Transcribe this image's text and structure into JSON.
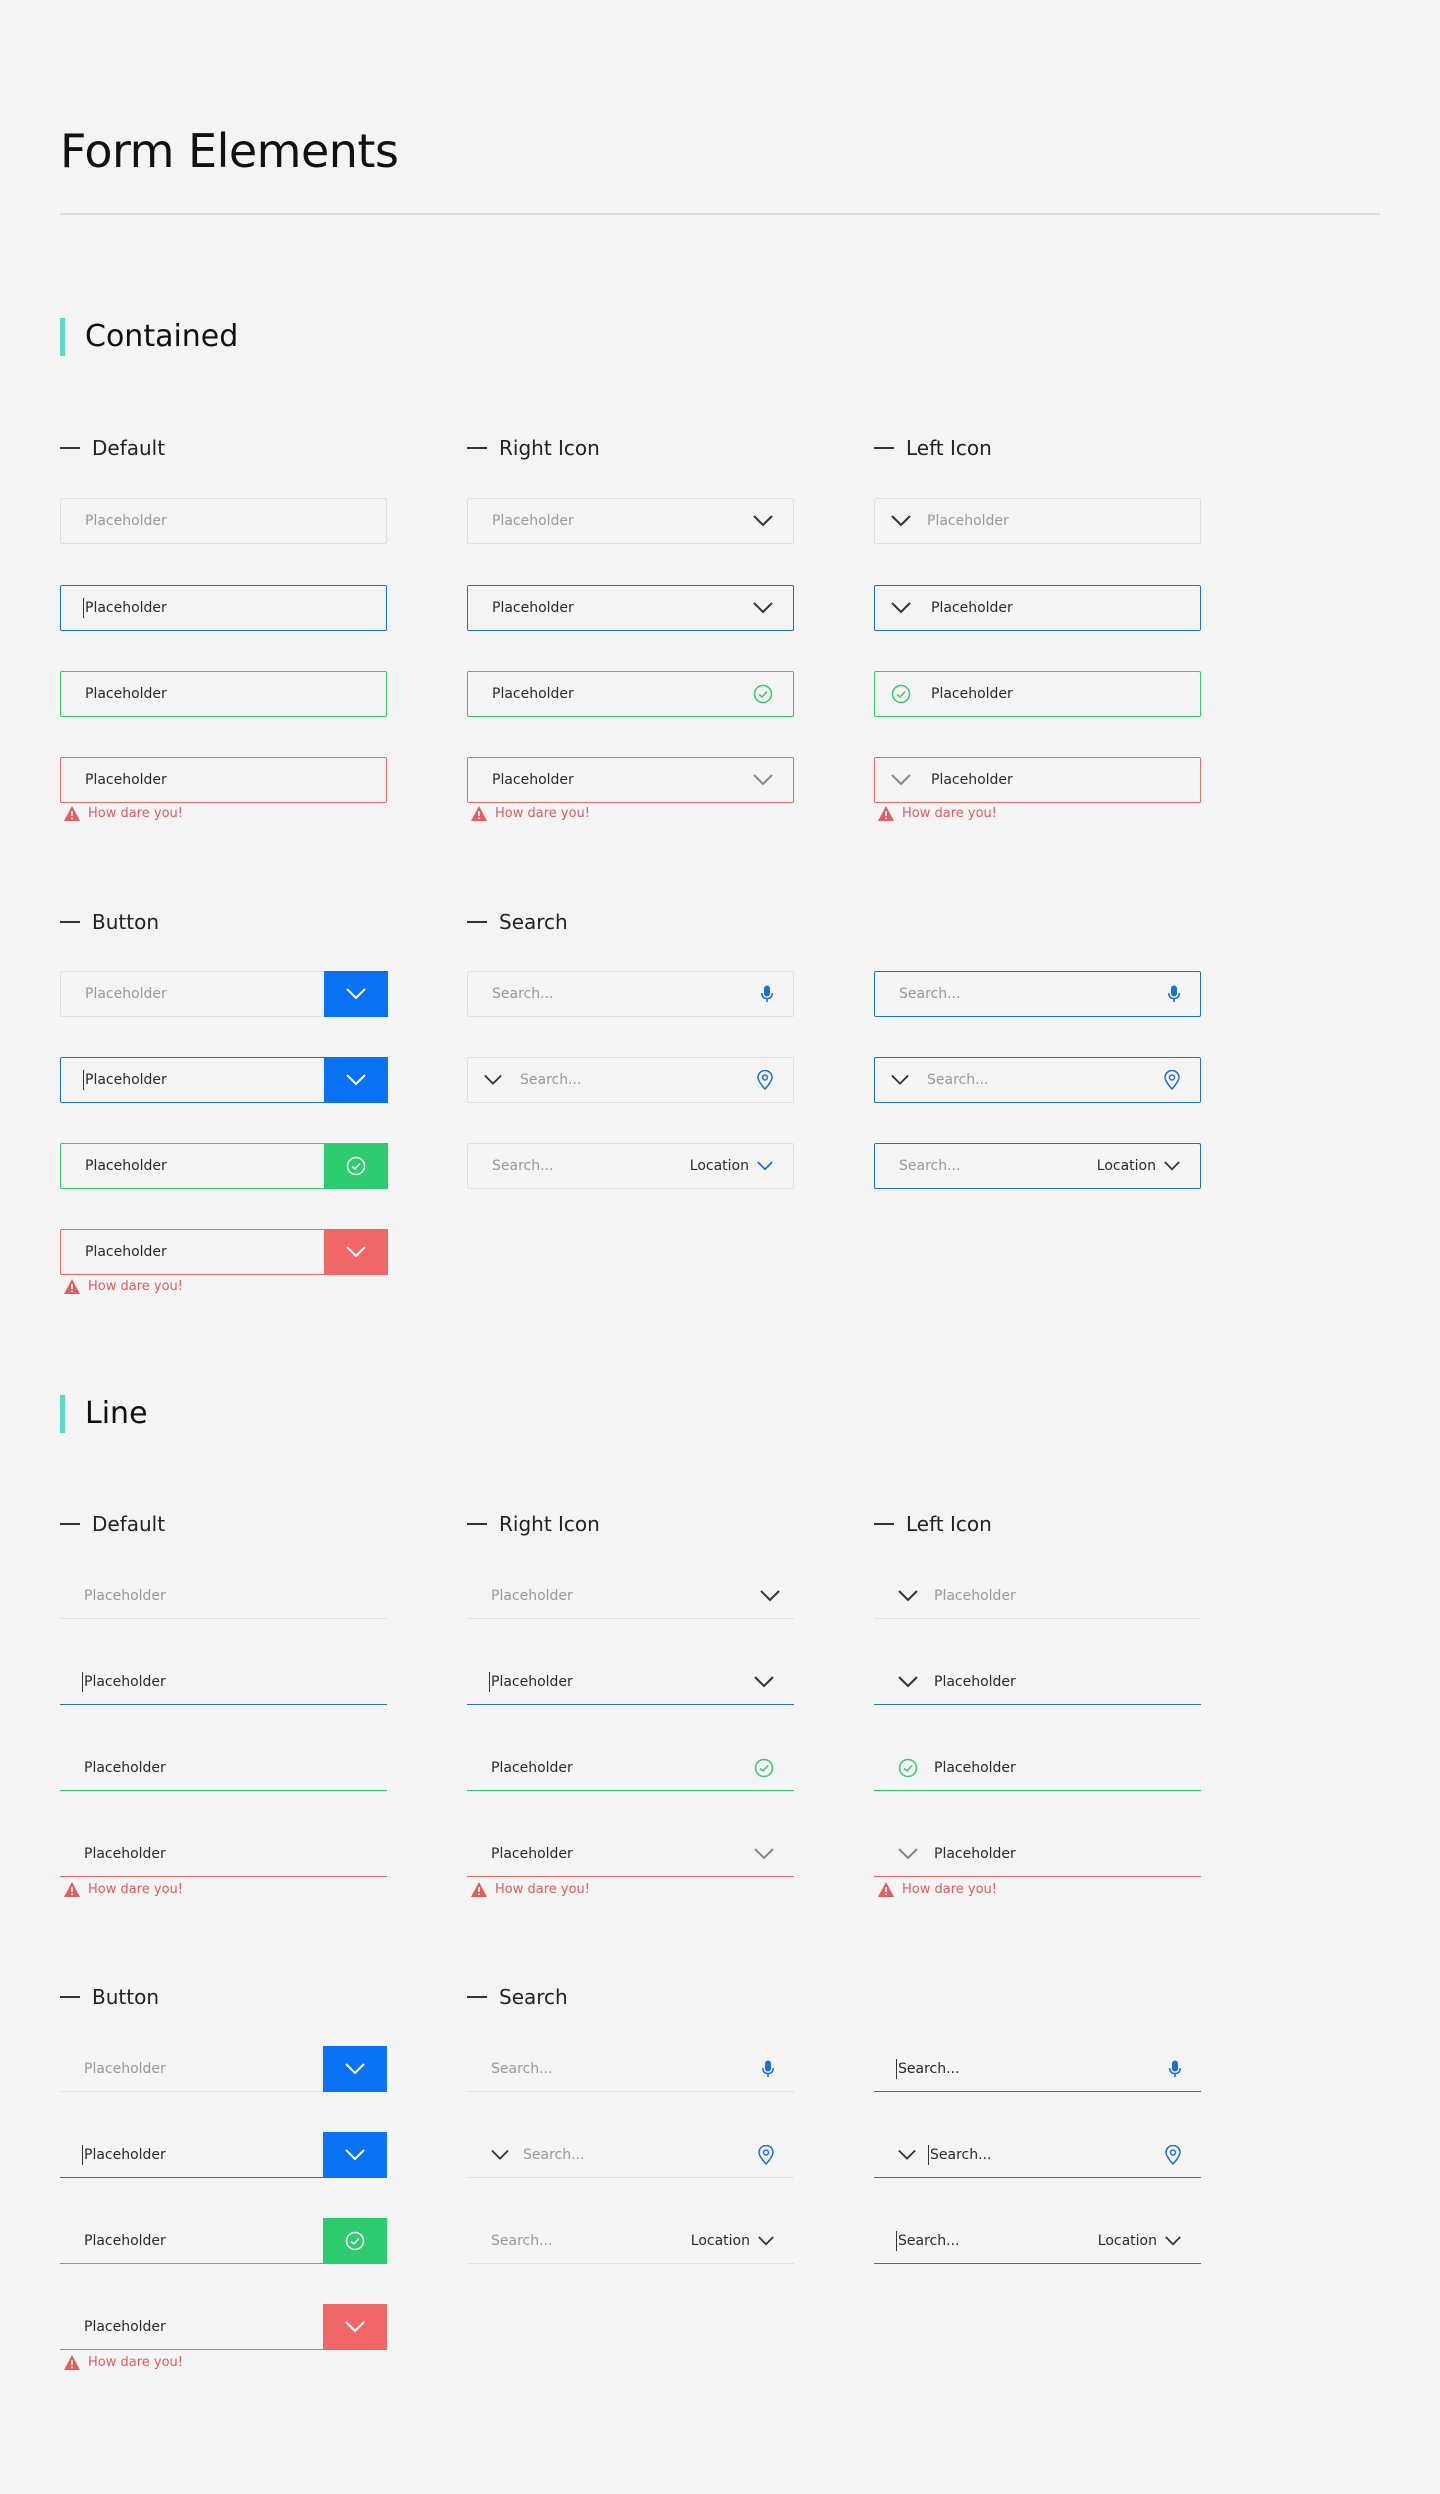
{
  "page_title": "Form Elements",
  "sections": {
    "contained": "Contained",
    "line": "Line"
  },
  "groups": {
    "default": "Default",
    "right_icon": "Right Icon",
    "left_icon": "Left Icon",
    "button": "Button",
    "search": "Search"
  },
  "placeholder": "Placeholder",
  "search_placeholder": "Search...",
  "location_label": "Location",
  "error_message": "How dare you!",
  "colors": {
    "accent": "#5ad9c6",
    "blue": "#0a72f5",
    "green": "#2ecc71",
    "red": "#f16767",
    "line_blue": "#2f6fc4"
  },
  "icons": [
    "chevron-down-icon",
    "check-circle-icon",
    "microphone-icon",
    "location-pin-icon",
    "warning-icon"
  ]
}
